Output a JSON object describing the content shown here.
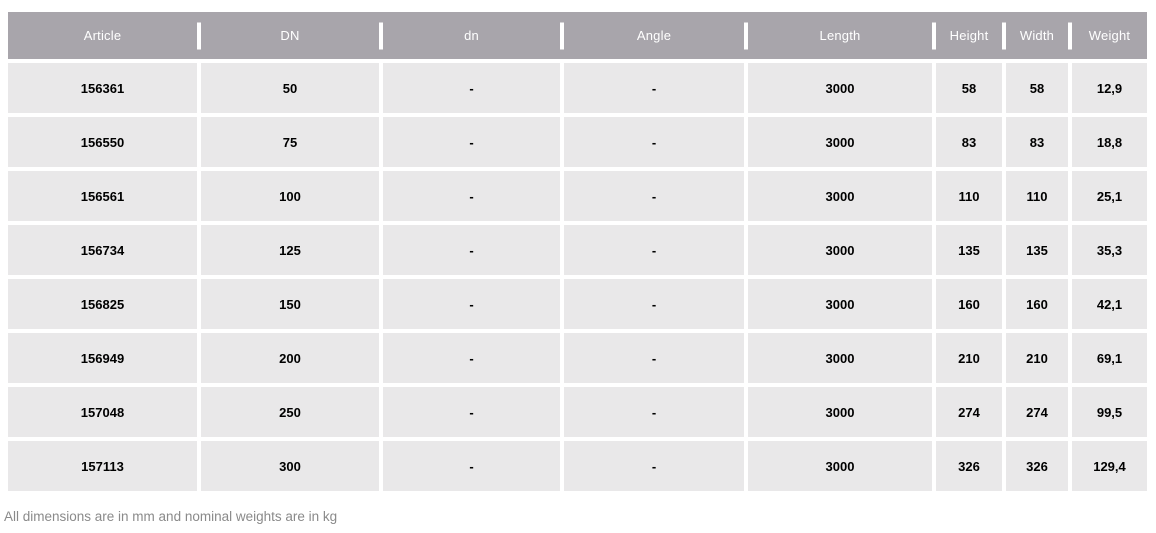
{
  "table": {
    "columns": [
      "Article",
      "DN",
      "dn",
      "Angle",
      "Length",
      "Height",
      "Width",
      "Weight"
    ],
    "rows": [
      [
        "156361",
        "50",
        "-",
        "-",
        "3000",
        "58",
        "58",
        "12,9"
      ],
      [
        "156550",
        "75",
        "-",
        "-",
        "3000",
        "83",
        "83",
        "18,8"
      ],
      [
        "156561",
        "100",
        "-",
        "-",
        "3000",
        "110",
        "110",
        "25,1"
      ],
      [
        "156734",
        "125",
        "-",
        "-",
        "3000",
        "135",
        "135",
        "35,3"
      ],
      [
        "156825",
        "150",
        "-",
        "-",
        "3000",
        "160",
        "160",
        "42,1"
      ],
      [
        "156949",
        "200",
        "-",
        "-",
        "3000",
        "210",
        "210",
        "69,1"
      ],
      [
        "157048",
        "250",
        "-",
        "-",
        "3000",
        "274",
        "274",
        "99,5"
      ],
      [
        "157113",
        "300",
        "-",
        "-",
        "3000",
        "326",
        "326",
        "129,4"
      ]
    ]
  },
  "footer": {
    "note": "All dimensions are in mm and nominal weights are in kg"
  },
  "colors": {
    "header_bg": "#a8a5ab",
    "header_text": "#ffffff",
    "cell_bg": "#e9e8e9",
    "cell_text": "#000000",
    "note_text": "#8a8a8a",
    "page_bg": "#ffffff"
  }
}
